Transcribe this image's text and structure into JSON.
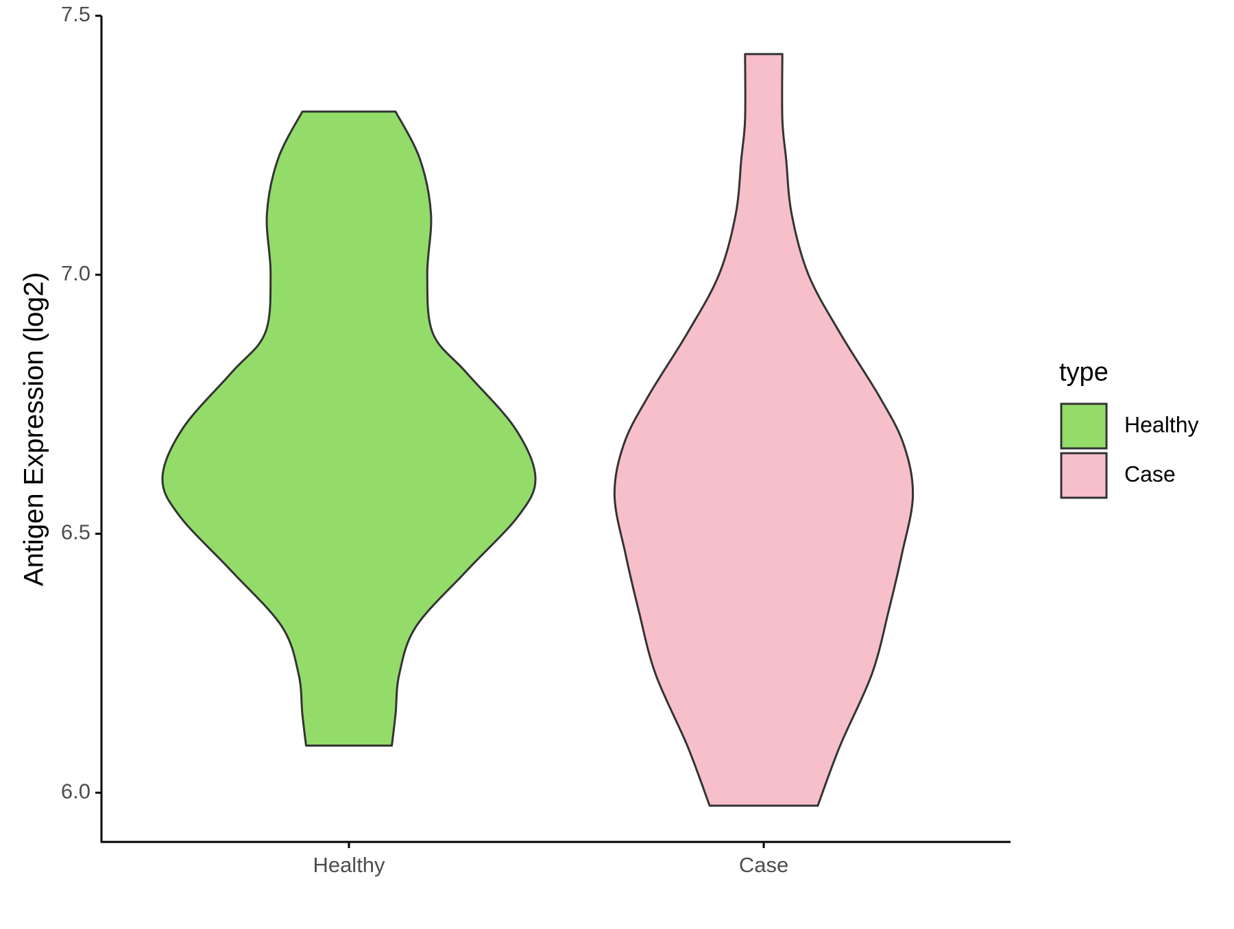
{
  "chart_data": {
    "type": "violin",
    "ylabel": "Antigen Expression (log2)",
    "categories": [
      "Healthy",
      "Case"
    ],
    "ylim": [
      5.905,
      7.5
    ],
    "yticks": [
      {
        "value": 6,
        "label": "6.0"
      },
      {
        "value": 6.5,
        "label": "6.5"
      },
      {
        "value": 7,
        "label": "7.0"
      },
      {
        "value": 7.5,
        "label": "7.5"
      }
    ],
    "legend_title": "type",
    "legend_position": "right",
    "series": [
      {
        "name": "Healthy",
        "color": "#93dc6a",
        "y": [
          7.315,
          7.224,
          7.117,
          7.0,
          6.887,
          6.811,
          6.704,
          6.609,
          6.535,
          6.428,
          6.321,
          6.229,
          6.152,
          6.091
        ],
        "density": [
          0.25,
          0.38,
          0.44,
          0.42,
          0.45,
          0.63,
          0.89,
          1.0,
          0.91,
          0.63,
          0.36,
          0.27,
          0.25,
          0.23
        ]
      },
      {
        "name": "Case",
        "color": "#f7bfca",
        "y": [
          7.426,
          7.3,
          7.224,
          7.117,
          7.0,
          6.887,
          6.765,
          6.673,
          6.574,
          6.459,
          6.351,
          6.229,
          6.091,
          5.975
        ],
        "density": [
          0.1,
          0.1,
          0.12,
          0.15,
          0.24,
          0.41,
          0.62,
          0.75,
          0.8,
          0.74,
          0.67,
          0.58,
          0.41,
          0.29
        ]
      }
    ]
  }
}
